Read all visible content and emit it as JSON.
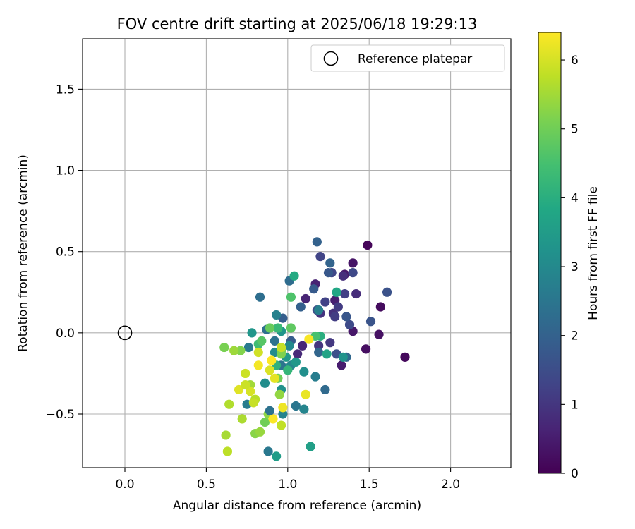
{
  "chart_data": {
    "type": "scatter",
    "title": "FOV centre drift starting at 2025/06/18 19:29:13",
    "xlabel": "Angular distance from reference (arcmin)",
    "ylabel": "Rotation from reference (arcmin)",
    "xlim": [
      -0.26,
      2.37
    ],
    "ylim": [
      -0.83,
      1.81
    ],
    "x_ticks": [
      0.0,
      0.5,
      1.0,
      1.5,
      2.0
    ],
    "x_tick_labels": [
      "0.0",
      "0.5",
      "1.0",
      "1.5",
      "2.0"
    ],
    "y_ticks": [
      -0.5,
      0.0,
      0.5,
      1.0,
      1.5
    ],
    "y_tick_labels": [
      "−0.5",
      "0.0",
      "0.5",
      "1.0",
      "1.5"
    ],
    "grid": true,
    "legend": {
      "placement": "top-right",
      "entries": [
        {
          "label": "Reference platepar",
          "marker": "open-circle",
          "x": 0.0,
          "y": 0.0
        }
      ]
    },
    "colorbar": {
      "label": "Hours from first FF file",
      "min": 0,
      "max": 6.4,
      "ticks": [
        0,
        1,
        2,
        3,
        4,
        5,
        6
      ],
      "tick_labels": [
        "0",
        "1",
        "2",
        "3",
        "4",
        "5",
        "6"
      ],
      "colormap": "viridis"
    },
    "points": [
      [
        1.49,
        0.54,
        0.1
      ],
      [
        1.72,
        -0.15,
        0.15
      ],
      [
        1.57,
        0.16,
        0.2
      ],
      [
        1.48,
        -0.1,
        0.25
      ],
      [
        1.56,
        -0.01,
        0.3
      ],
      [
        1.4,
        0.43,
        0.35
      ],
      [
        1.4,
        0.01,
        0.4
      ],
      [
        1.35,
        0.36,
        0.45
      ],
      [
        1.33,
        -0.2,
        0.5
      ],
      [
        1.29,
        0.2,
        0.55
      ],
      [
        1.17,
        0.3,
        0.6
      ],
      [
        1.11,
        0.21,
        0.65
      ],
      [
        1.09,
        -0.08,
        0.7
      ],
      [
        1.06,
        -0.13,
        0.75
      ],
      [
        1.42,
        0.24,
        0.8
      ],
      [
        1.34,
        0.35,
        0.85
      ],
      [
        1.28,
        0.12,
        0.9
      ],
      [
        1.2,
        0.12,
        0.95
      ],
      [
        1.19,
        -0.08,
        1.0
      ],
      [
        1.26,
        -0.06,
        1.05
      ],
      [
        1.31,
        0.16,
        1.1
      ],
      [
        1.29,
        0.1,
        1.15
      ],
      [
        1.35,
        0.24,
        1.2
      ],
      [
        1.23,
        0.19,
        1.25
      ],
      [
        1.2,
        0.47,
        1.3
      ],
      [
        1.27,
        0.37,
        1.35
      ],
      [
        1.4,
        0.37,
        1.4
      ],
      [
        1.38,
        0.05,
        1.45
      ],
      [
        1.18,
        0.14,
        1.5
      ],
      [
        1.3,
        -0.13,
        1.55
      ],
      [
        1.61,
        0.25,
        1.6
      ],
      [
        1.51,
        0.07,
        1.65
      ],
      [
        1.36,
        0.1,
        1.7
      ],
      [
        1.25,
        0.37,
        1.75
      ],
      [
        1.16,
        0.27,
        1.8
      ],
      [
        1.02,
        -0.05,
        1.85
      ],
      [
        0.97,
        0.09,
        1.9
      ],
      [
        1.08,
        0.16,
        1.95
      ],
      [
        1.18,
        0.56,
        2.0
      ],
      [
        1.26,
        0.43,
        2.05
      ],
      [
        1.19,
        -0.12,
        2.1
      ],
      [
        1.36,
        -0.15,
        2.15
      ],
      [
        1.23,
        -0.35,
        2.2
      ],
      [
        1.01,
        0.32,
        2.25
      ],
      [
        0.83,
        0.22,
        2.3
      ],
      [
        0.87,
        0.02,
        2.35
      ],
      [
        0.92,
        -0.05,
        2.4
      ],
      [
        0.96,
        -0.2,
        2.45
      ],
      [
        1.05,
        -0.45,
        2.5
      ],
      [
        0.88,
        -0.73,
        2.55
      ],
      [
        0.76,
        -0.09,
        2.6
      ],
      [
        0.75,
        -0.44,
        2.65
      ],
      [
        1.17,
        -0.27,
        2.7
      ],
      [
        1.19,
        0.14,
        2.75
      ],
      [
        0.93,
        0.11,
        2.8
      ],
      [
        0.97,
        -0.5,
        2.85
      ],
      [
        1.1,
        -0.47,
        2.9
      ],
      [
        1.02,
        -0.2,
        2.95
      ],
      [
        1.01,
        -0.08,
        3.0
      ],
      [
        0.92,
        -0.12,
        3.05
      ],
      [
        0.86,
        -0.31,
        3.1
      ],
      [
        1.1,
        -0.24,
        3.15
      ],
      [
        0.96,
        -0.35,
        3.2
      ],
      [
        1.34,
        -0.15,
        3.25
      ],
      [
        0.96,
        0.01,
        3.3
      ],
      [
        0.78,
        0.0,
        3.35
      ],
      [
        1.05,
        -0.18,
        3.4
      ],
      [
        0.99,
        -0.15,
        3.45
      ],
      [
        0.93,
        -0.76,
        3.5
      ],
      [
        1.14,
        -0.7,
        3.6
      ],
      [
        1.24,
        -0.13,
        3.7
      ],
      [
        1.3,
        0.25,
        3.8
      ],
      [
        1.04,
        0.35,
        3.9
      ],
      [
        1.2,
        -0.02,
        4.0
      ],
      [
        0.93,
        -0.2,
        4.1
      ],
      [
        1.0,
        -0.23,
        4.2
      ],
      [
        0.94,
        0.03,
        4.3
      ],
      [
        0.82,
        -0.07,
        4.4
      ],
      [
        1.17,
        -0.02,
        4.5
      ],
      [
        1.02,
        0.22,
        4.6
      ],
      [
        0.84,
        -0.05,
        4.7
      ],
      [
        1.02,
        0.03,
        4.8
      ],
      [
        0.89,
        0.03,
        4.9
      ],
      [
        0.94,
        -0.28,
        5.0
      ],
      [
        0.86,
        -0.55,
        5.0
      ],
      [
        0.96,
        -0.11,
        5.05
      ],
      [
        0.61,
        -0.09,
        5.1
      ],
      [
        0.96,
        -0.13,
        5.15
      ],
      [
        0.71,
        -0.11,
        5.2
      ],
      [
        0.8,
        -0.62,
        5.25
      ],
      [
        0.88,
        -0.5,
        5.3
      ],
      [
        0.95,
        -0.38,
        5.35
      ],
      [
        0.83,
        -0.61,
        5.4
      ],
      [
        0.67,
        -0.11,
        5.45
      ],
      [
        0.77,
        -0.32,
        5.5
      ],
      [
        0.62,
        -0.63,
        5.55
      ],
      [
        0.72,
        -0.53,
        5.6
      ],
      [
        0.64,
        -0.44,
        5.65
      ],
      [
        0.8,
        -0.41,
        5.7
      ],
      [
        0.63,
        -0.73,
        5.75
      ],
      [
        0.96,
        -0.57,
        5.8
      ],
      [
        0.96,
        -0.09,
        5.85
      ],
      [
        0.74,
        -0.25,
        5.9
      ],
      [
        0.82,
        -0.12,
        5.95
      ],
      [
        0.77,
        -0.36,
        6.0
      ],
      [
        0.89,
        -0.23,
        6.05
      ],
      [
        0.7,
        -0.35,
        6.1
      ],
      [
        0.92,
        -0.28,
        6.15
      ],
      [
        1.11,
        -0.38,
        6.2
      ],
      [
        0.97,
        -0.46,
        6.25
      ],
      [
        0.82,
        -0.2,
        6.3
      ],
      [
        1.13,
        -0.04,
        6.35
      ],
      [
        0.91,
        -0.53,
        6.38
      ],
      [
        0.9,
        -0.17,
        6.4
      ],
      [
        0.79,
        -0.43,
        5.85
      ],
      [
        0.89,
        -0.48,
        2.4
      ],
      [
        0.74,
        -0.32,
        5.9
      ]
    ]
  }
}
